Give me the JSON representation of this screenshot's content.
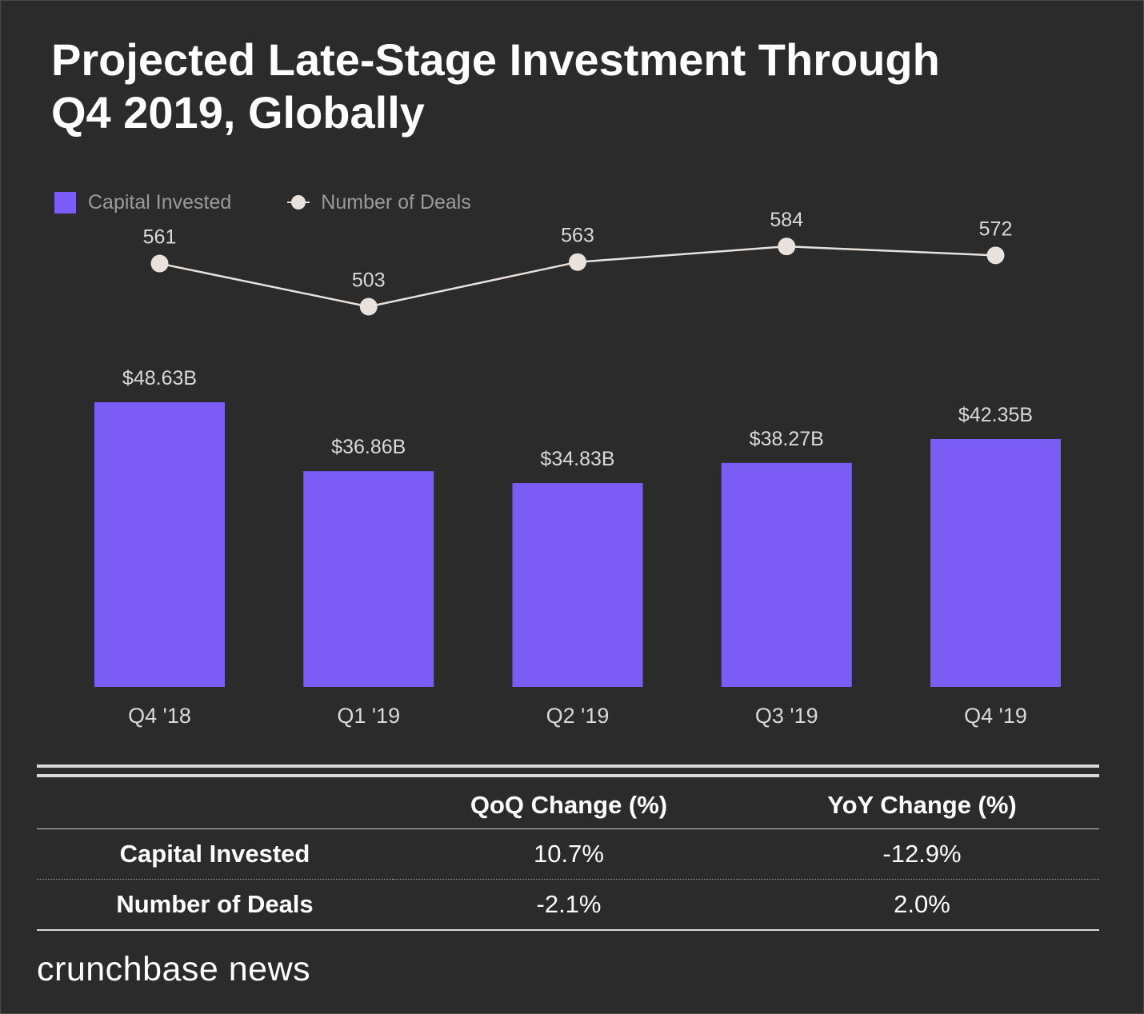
{
  "title_lines": [
    "Projected Late-Stage Investment Through",
    "Q4 2019, Globally"
  ],
  "legend": {
    "bar_label": "Capital Invested",
    "line_label": "Number of Deals"
  },
  "colors": {
    "bar": "#7b5cf5",
    "line": "#e8e1dc",
    "background": "#2b2b2b"
  },
  "chart_data": {
    "type": "bar",
    "categories": [
      "Q4 '18",
      "Q1 '19",
      "Q2 '19",
      "Q3 '19",
      "Q4 '19"
    ],
    "series": [
      {
        "name": "Capital Invested",
        "type": "bar",
        "values": [
          48.63,
          36.86,
          34.83,
          38.27,
          42.35
        ],
        "labels": [
          "$48.63B",
          "$36.86B",
          "$34.83B",
          "$38.27B",
          "$42.35B"
        ]
      },
      {
        "name": "Number of Deals",
        "type": "line",
        "values": [
          561,
          503,
          563,
          584,
          572
        ],
        "labels": [
          "561",
          "503",
          "563",
          "584",
          "572"
        ]
      }
    ],
    "legend_position": "top-left",
    "grid": false
  },
  "stats_table": {
    "headers": [
      "",
      "QoQ Change (%)",
      "YoY Change (%)"
    ],
    "rows": [
      {
        "label": "Capital Invested",
        "qoq": "10.7%",
        "yoy": "-12.9%"
      },
      {
        "label": "Number of Deals",
        "qoq": "-2.1%",
        "yoy": "2.0%"
      }
    ]
  },
  "brand": "crunchbase news"
}
